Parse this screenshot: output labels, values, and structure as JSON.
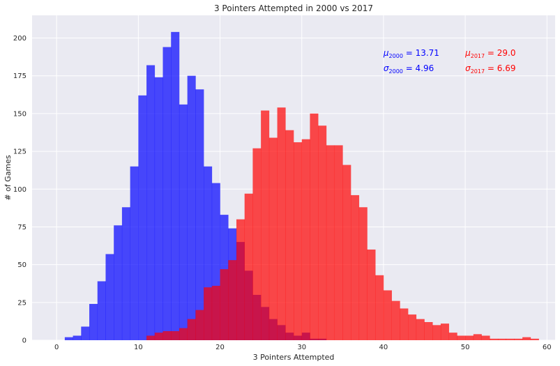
{
  "chart_data": {
    "type": "bar",
    "title": "3 Pointers Attempted in 2000 vs 2017",
    "xlabel": "3 Pointers Attempted",
    "ylabel": "# of Games",
    "xlim": [
      -3,
      61
    ],
    "ylim": [
      0,
      215
    ],
    "xticks": [
      0,
      10,
      20,
      30,
      40,
      50,
      60
    ],
    "yticks": [
      0,
      25,
      50,
      75,
      100,
      125,
      150,
      175,
      200
    ],
    "grid": true,
    "bin_width": 1,
    "series": [
      {
        "name": "2000",
        "color": "#0000ff",
        "opacity": 0.7,
        "bins": [
          {
            "x": 1,
            "count": 2
          },
          {
            "x": 2,
            "count": 3
          },
          {
            "x": 3,
            "count": 9
          },
          {
            "x": 4,
            "count": 24
          },
          {
            "x": 5,
            "count": 39
          },
          {
            "x": 6,
            "count": 57
          },
          {
            "x": 7,
            "count": 76
          },
          {
            "x": 8,
            "count": 88
          },
          {
            "x": 9,
            "count": 115
          },
          {
            "x": 10,
            "count": 162
          },
          {
            "x": 11,
            "count": 182
          },
          {
            "x": 12,
            "count": 174
          },
          {
            "x": 13,
            "count": 194
          },
          {
            "x": 14,
            "count": 204
          },
          {
            "x": 15,
            "count": 156
          },
          {
            "x": 16,
            "count": 175
          },
          {
            "x": 17,
            "count": 166
          },
          {
            "x": 18,
            "count": 115
          },
          {
            "x": 19,
            "count": 104
          },
          {
            "x": 20,
            "count": 83
          },
          {
            "x": 21,
            "count": 74
          },
          {
            "x": 22,
            "count": 65
          },
          {
            "x": 23,
            "count": 46
          },
          {
            "x": 24,
            "count": 30
          },
          {
            "x": 25,
            "count": 22
          },
          {
            "x": 26,
            "count": 14
          },
          {
            "x": 27,
            "count": 10
          },
          {
            "x": 28,
            "count": 5
          },
          {
            "x": 29,
            "count": 3
          },
          {
            "x": 30,
            "count": 5
          },
          {
            "x": 31,
            "count": 1
          },
          {
            "x": 32,
            "count": 1
          }
        ]
      },
      {
        "name": "2017",
        "color": "#ff0000",
        "opacity": 0.7,
        "bins": [
          {
            "x": 11,
            "count": 3
          },
          {
            "x": 12,
            "count": 5
          },
          {
            "x": 13,
            "count": 6
          },
          {
            "x": 14,
            "count": 6
          },
          {
            "x": 15,
            "count": 8
          },
          {
            "x": 16,
            "count": 14
          },
          {
            "x": 17,
            "count": 20
          },
          {
            "x": 18,
            "count": 35
          },
          {
            "x": 19,
            "count": 36
          },
          {
            "x": 20,
            "count": 47
          },
          {
            "x": 21,
            "count": 53
          },
          {
            "x": 22,
            "count": 80
          },
          {
            "x": 23,
            "count": 97
          },
          {
            "x": 24,
            "count": 127
          },
          {
            "x": 25,
            "count": 152
          },
          {
            "x": 26,
            "count": 134
          },
          {
            "x": 27,
            "count": 154
          },
          {
            "x": 28,
            "count": 139
          },
          {
            "x": 29,
            "count": 131
          },
          {
            "x": 30,
            "count": 133
          },
          {
            "x": 31,
            "count": 150
          },
          {
            "x": 32,
            "count": 142
          },
          {
            "x": 33,
            "count": 129
          },
          {
            "x": 34,
            "count": 129
          },
          {
            "x": 35,
            "count": 116
          },
          {
            "x": 36,
            "count": 96
          },
          {
            "x": 37,
            "count": 88
          },
          {
            "x": 38,
            "count": 60
          },
          {
            "x": 39,
            "count": 43
          },
          {
            "x": 40,
            "count": 33
          },
          {
            "x": 41,
            "count": 26
          },
          {
            "x": 42,
            "count": 21
          },
          {
            "x": 43,
            "count": 17
          },
          {
            "x": 44,
            "count": 14
          },
          {
            "x": 45,
            "count": 12
          },
          {
            "x": 46,
            "count": 10
          },
          {
            "x": 47,
            "count": 11
          },
          {
            "x": 48,
            "count": 5
          },
          {
            "x": 49,
            "count": 3
          },
          {
            "x": 50,
            "count": 3
          },
          {
            "x": 51,
            "count": 4
          },
          {
            "x": 52,
            "count": 3
          },
          {
            "x": 53,
            "count": 1
          },
          {
            "x": 54,
            "count": 1
          },
          {
            "x": 55,
            "count": 1
          },
          {
            "x": 56,
            "count": 1
          },
          {
            "x": 57,
            "count": 2
          },
          {
            "x": 58,
            "count": 1
          }
        ]
      }
    ],
    "annotations": [
      {
        "id": "mu2000",
        "symbol": "μ",
        "sub": "2000",
        "text": " = 13.71",
        "color": "#0000ff",
        "x": 40,
        "y": 190
      },
      {
        "id": "sigma2000",
        "symbol": "σ",
        "sub": "2000",
        "text": " = 4.96",
        "color": "#0000ff",
        "x": 40,
        "y": 180
      },
      {
        "id": "mu2017",
        "symbol": "μ",
        "sub": "2017",
        "text": " = 29.0",
        "color": "#ff0000",
        "x": 50,
        "y": 190
      },
      {
        "id": "sigma2017",
        "symbol": "σ",
        "sub": "2017",
        "text": " = 6.69",
        "color": "#ff0000",
        "x": 50,
        "y": 180
      }
    ]
  },
  "style": {
    "plot_background": "#eaeaf2",
    "grid_color": "#ffffff",
    "text_color": "#262626"
  }
}
